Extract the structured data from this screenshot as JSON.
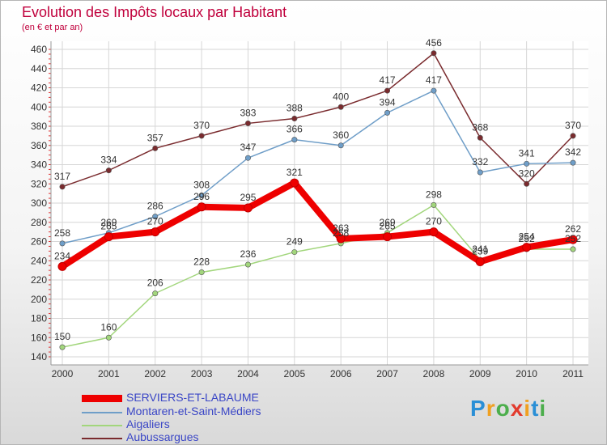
{
  "chart_data": {
    "type": "line",
    "title": "Evolution des Impôts locaux par Habitant",
    "subtitle": "(en € et par an)",
    "xlabel": "",
    "ylabel": "",
    "categories": [
      "2000",
      "2001",
      "2002",
      "2003",
      "2004",
      "2005",
      "2006",
      "2007",
      "2008",
      "2009",
      "2010",
      "2011"
    ],
    "ylim": [
      140,
      460
    ],
    "yticks": [
      140,
      160,
      180,
      200,
      220,
      240,
      260,
      280,
      300,
      320,
      340,
      360,
      380,
      400,
      420,
      440,
      460
    ],
    "grid": true,
    "legend_position": "bottom-left",
    "series": [
      {
        "name": "Aubussargues",
        "color": "#7a2b2e",
        "values": [
          317,
          334,
          357,
          370,
          383,
          388,
          400,
          417,
          456,
          368,
          320,
          370
        ]
      },
      {
        "name": "Montaren-et-Saint-Médiers",
        "color": "#6f9ec8",
        "values": [
          258,
          269,
          286,
          308,
          347,
          366,
          360,
          394,
          417,
          332,
          341,
          342
        ]
      },
      {
        "name": "Aigaliers",
        "color": "#a2d67c",
        "values": [
          150,
          160,
          206,
          228,
          236,
          249,
          258,
          269,
          298,
          241,
          252,
          252
        ]
      },
      {
        "name": "SERVIERS-ET-LABAUME",
        "color": "#ee0000",
        "values": [
          234,
          265,
          270,
          296,
          295,
          321,
          263,
          265,
          270,
          239,
          254,
          262
        ]
      }
    ],
    "legend": [
      "SERVIERS-ET-LABAUME",
      "Montaren-et-Saint-Médiers",
      "Aigaliers",
      "Aubussargues"
    ]
  },
  "brand": {
    "letters": [
      "P",
      "r",
      "o",
      "x",
      "i",
      "t",
      "i"
    ],
    "colors": [
      "#2a8fd6",
      "#f0a020",
      "#4cae4c",
      "#e23b2e",
      "#f0a020",
      "#2a8fd6",
      "#4cae4c"
    ]
  }
}
